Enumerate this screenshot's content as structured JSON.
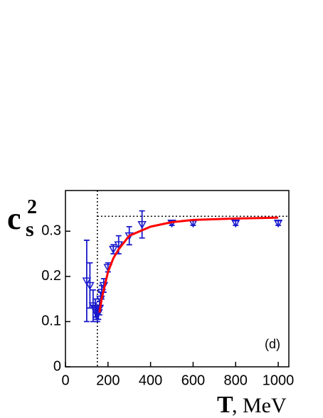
{
  "chart_data": {
    "type": "scatter",
    "xlabel": {
      "symbol": "T",
      "unit": ", MeV"
    },
    "ylabel": {
      "base": "c",
      "sub": "s",
      "sup": "2"
    },
    "annotation": "(d)",
    "xlim": [
      0,
      1050
    ],
    "ylim": [
      0,
      0.39
    ],
    "xticks": [
      0,
      200,
      400,
      600,
      800,
      1000
    ],
    "yticks": [
      0,
      0.1,
      0.2,
      0.3
    ],
    "reference_lines": {
      "x": 150,
      "y": 0.333
    },
    "series": [
      {
        "type": "scatter",
        "color": "#1a1acc",
        "x": [
          100,
          115,
          130,
          140,
          145,
          150,
          155,
          160,
          165,
          170,
          180,
          200,
          225,
          250,
          300,
          360,
          500,
          600,
          800,
          1000
        ],
        "values": [
          0.19,
          0.18,
          0.135,
          0.13,
          0.12,
          0.115,
          0.12,
          0.13,
          0.15,
          0.165,
          0.18,
          0.22,
          0.26,
          0.27,
          0.29,
          0.315,
          0.318,
          0.318,
          0.318,
          0.318
        ],
        "errors": [
          0.09,
          0.05,
          0.035,
          0.02,
          0.015,
          0.015,
          0.015,
          0.015,
          0.015,
          0.015,
          0.015,
          0.01,
          0.01,
          0.02,
          0.02,
          0.03,
          0.005,
          0.005,
          0.005,
          0.005
        ]
      },
      {
        "type": "line",
        "color": "#ff0000",
        "x": [
          160,
          170,
          180,
          200,
          225,
          250,
          300,
          400,
          500,
          600,
          800,
          1000
        ],
        "values": [
          0.12,
          0.15,
          0.17,
          0.21,
          0.24,
          0.26,
          0.29,
          0.31,
          0.32,
          0.325,
          0.328,
          0.33
        ]
      }
    ]
  }
}
